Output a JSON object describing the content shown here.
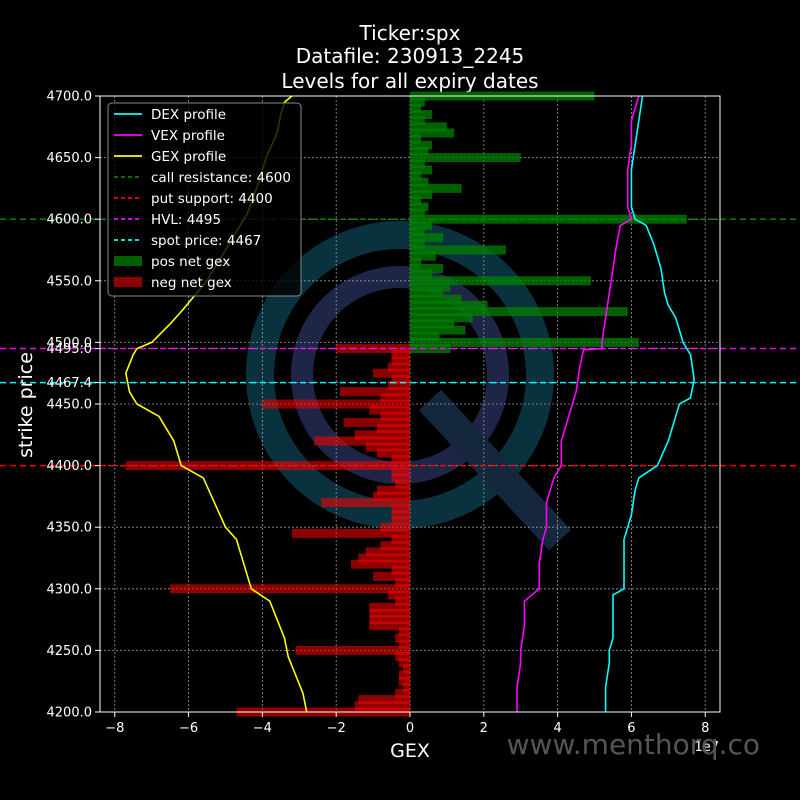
{
  "chart_data": {
    "type": "bar",
    "title_lines": [
      "Ticker:spx",
      "Datafile: 230913_2245",
      "Levels for all expiry dates"
    ],
    "xlabel": "GEX",
    "ylabel": "strike price",
    "x_exponent_label": "1e7",
    "xlim": [
      -8.4,
      8.4
    ],
    "ylim": [
      4200,
      4700
    ],
    "x_ticks": [
      -8,
      -6,
      -4,
      -2,
      0,
      2,
      4,
      6,
      8
    ],
    "y_ticks": [
      4200,
      4250,
      4300,
      4350,
      4400,
      4450,
      4467.4,
      4495,
      4500,
      4550,
      4600,
      4650,
      4700
    ],
    "y_tick_labels": [
      "4200.0",
      "4250.0",
      "4300.0",
      "4350.0",
      "4400.0",
      "4450.0",
      "4467.4",
      "4495.0",
      "4500.0",
      "4550.0",
      "4600.0",
      "4650.0",
      "4700.0"
    ],
    "grid": true,
    "legend_position": "top-left",
    "bar_height": 9,
    "pos_net_gex": [
      {
        "strike": 4495,
        "value": 1.1
      },
      {
        "strike": 4500,
        "value": 6.2
      },
      {
        "strike": 4505,
        "value": 0.8
      },
      {
        "strike": 4510,
        "value": 1.5
      },
      {
        "strike": 4515,
        "value": 1.2
      },
      {
        "strike": 4520,
        "value": 1.7
      },
      {
        "strike": 4525,
        "value": 5.9
      },
      {
        "strike": 4530,
        "value": 2.1
      },
      {
        "strike": 4535,
        "value": 1.4
      },
      {
        "strike": 4540,
        "value": 0.9
      },
      {
        "strike": 4545,
        "value": 1.1
      },
      {
        "strike": 4550,
        "value": 4.9
      },
      {
        "strike": 4555,
        "value": 0.6
      },
      {
        "strike": 4560,
        "value": 0.9
      },
      {
        "strike": 4565,
        "value": 0.3
      },
      {
        "strike": 4570,
        "value": 0.7
      },
      {
        "strike": 4575,
        "value": 2.6
      },
      {
        "strike": 4580,
        "value": 0.4
      },
      {
        "strike": 4585,
        "value": 0.9
      },
      {
        "strike": 4590,
        "value": 0.4
      },
      {
        "strike": 4595,
        "value": 0.6
      },
      {
        "strike": 4600,
        "value": 7.5
      },
      {
        "strike": 4605,
        "value": 0.4
      },
      {
        "strike": 4610,
        "value": 0.5
      },
      {
        "strike": 4615,
        "value": 0.3
      },
      {
        "strike": 4620,
        "value": 0.6
      },
      {
        "strike": 4625,
        "value": 1.4
      },
      {
        "strike": 4630,
        "value": 0.5
      },
      {
        "strike": 4635,
        "value": 0.3
      },
      {
        "strike": 4640,
        "value": 0.6
      },
      {
        "strike": 4645,
        "value": 0.4
      },
      {
        "strike": 4650,
        "value": 3.0
      },
      {
        "strike": 4655,
        "value": 0.5
      },
      {
        "strike": 4660,
        "value": 0.6
      },
      {
        "strike": 4665,
        "value": 0.3
      },
      {
        "strike": 4670,
        "value": 1.2
      },
      {
        "strike": 4675,
        "value": 1.0
      },
      {
        "strike": 4680,
        "value": 0.4
      },
      {
        "strike": 4685,
        "value": 0.6
      },
      {
        "strike": 4690,
        "value": 0.3
      },
      {
        "strike": 4695,
        "value": 0.4
      },
      {
        "strike": 4700,
        "value": 5.0
      }
    ],
    "neg_net_gex": [
      {
        "strike": 4200,
        "value": -4.7
      },
      {
        "strike": 4205,
        "value": -1.5
      },
      {
        "strike": 4210,
        "value": -1.4
      },
      {
        "strike": 4215,
        "value": -0.4
      },
      {
        "strike": 4220,
        "value": -0.2
      },
      {
        "strike": 4225,
        "value": -0.3
      },
      {
        "strike": 4230,
        "value": -0.3
      },
      {
        "strike": 4235,
        "value": -0.2
      },
      {
        "strike": 4240,
        "value": -0.3
      },
      {
        "strike": 4245,
        "value": -0.4
      },
      {
        "strike": 4250,
        "value": -3.1
      },
      {
        "strike": 4255,
        "value": -0.3
      },
      {
        "strike": 4260,
        "value": -0.4
      },
      {
        "strike": 4265,
        "value": -0.3
      },
      {
        "strike": 4270,
        "value": -1.1
      },
      {
        "strike": 4275,
        "value": -1.1
      },
      {
        "strike": 4280,
        "value": -1.1
      },
      {
        "strike": 4285,
        "value": -1.1
      },
      {
        "strike": 4290,
        "value": -0.4
      },
      {
        "strike": 4295,
        "value": -0.6
      },
      {
        "strike": 4300,
        "value": -6.5
      },
      {
        "strike": 4305,
        "value": -0.4
      },
      {
        "strike": 4310,
        "value": -1.0
      },
      {
        "strike": 4315,
        "value": -0.5
      },
      {
        "strike": 4320,
        "value": -1.6
      },
      {
        "strike": 4325,
        "value": -1.4
      },
      {
        "strike": 4330,
        "value": -1.2
      },
      {
        "strike": 4335,
        "value": -0.8
      },
      {
        "strike": 4340,
        "value": -0.5
      },
      {
        "strike": 4345,
        "value": -3.2
      },
      {
        "strike": 4350,
        "value": -0.8
      },
      {
        "strike": 4355,
        "value": -0.5
      },
      {
        "strike": 4360,
        "value": -0.5
      },
      {
        "strike": 4365,
        "value": -0.5
      },
      {
        "strike": 4370,
        "value": -2.4
      },
      {
        "strike": 4375,
        "value": -1.0
      },
      {
        "strike": 4380,
        "value": -0.9
      },
      {
        "strike": 4385,
        "value": -0.4
      },
      {
        "strike": 4390,
        "value": -0.5
      },
      {
        "strike": 4395,
        "value": -0.5
      },
      {
        "strike": 4400,
        "value": -7.7
      },
      {
        "strike": 4405,
        "value": -0.5
      },
      {
        "strike": 4410,
        "value": -0.9
      },
      {
        "strike": 4415,
        "value": -1.2
      },
      {
        "strike": 4420,
        "value": -2.6
      },
      {
        "strike": 4425,
        "value": -1.5
      },
      {
        "strike": 4430,
        "value": -0.9
      },
      {
        "strike": 4435,
        "value": -1.8
      },
      {
        "strike": 4440,
        "value": -0.8
      },
      {
        "strike": 4445,
        "value": -1.1
      },
      {
        "strike": 4450,
        "value": -4.0
      },
      {
        "strike": 4455,
        "value": -0.8
      },
      {
        "strike": 4460,
        "value": -1.9
      },
      {
        "strike": 4465,
        "value": -0.6
      },
      {
        "strike": 4470,
        "value": -0.5
      },
      {
        "strike": 4475,
        "value": -1.0
      },
      {
        "strike": 4480,
        "value": -0.6
      },
      {
        "strike": 4485,
        "value": -0.5
      },
      {
        "strike": 4490,
        "value": -0.5
      },
      {
        "strike": 4495,
        "value": -2.0
      }
    ],
    "series": [
      {
        "name": "DEX profile",
        "color": "#00ffff",
        "points": [
          [
            5.3,
            4200
          ],
          [
            5.3,
            4220
          ],
          [
            5.4,
            4240
          ],
          [
            5.4,
            4250
          ],
          [
            5.5,
            4260
          ],
          [
            5.5,
            4280
          ],
          [
            5.5,
            4295
          ],
          [
            5.8,
            4300
          ],
          [
            5.8,
            4320
          ],
          [
            5.8,
            4340
          ],
          [
            5.9,
            4350
          ],
          [
            6.0,
            4360
          ],
          [
            6.1,
            4380
          ],
          [
            6.2,
            4390
          ],
          [
            6.7,
            4400
          ],
          [
            7.0,
            4420
          ],
          [
            7.2,
            4440
          ],
          [
            7.3,
            4450
          ],
          [
            7.6,
            4455
          ],
          [
            7.7,
            4470
          ],
          [
            7.6,
            4490
          ],
          [
            7.4,
            4500
          ],
          [
            7.2,
            4520
          ],
          [
            7.0,
            4530
          ],
          [
            6.9,
            4540
          ],
          [
            6.8,
            4560
          ],
          [
            6.6,
            4580
          ],
          [
            6.4,
            4595
          ],
          [
            6.1,
            4600
          ],
          [
            6.0,
            4610
          ],
          [
            6.0,
            4640
          ],
          [
            6.1,
            4660
          ],
          [
            6.2,
            4680
          ],
          [
            6.3,
            4700
          ]
        ]
      },
      {
        "name": "VEX profile",
        "color": "#ff00ff",
        "points": [
          [
            2.9,
            4200
          ],
          [
            2.9,
            4220
          ],
          [
            3.0,
            4240
          ],
          [
            3.0,
            4250
          ],
          [
            3.1,
            4270
          ],
          [
            3.1,
            4290
          ],
          [
            3.5,
            4300
          ],
          [
            3.5,
            4320
          ],
          [
            3.6,
            4340
          ],
          [
            3.7,
            4350
          ],
          [
            3.7,
            4370
          ],
          [
            3.8,
            4380
          ],
          [
            3.9,
            4390
          ],
          [
            4.1,
            4400
          ],
          [
            4.1,
            4420
          ],
          [
            4.3,
            4440
          ],
          [
            4.4,
            4450
          ],
          [
            4.5,
            4460
          ],
          [
            4.6,
            4480
          ],
          [
            4.7,
            4494
          ],
          [
            5.2,
            4495
          ],
          [
            5.2,
            4500
          ],
          [
            5.3,
            4520
          ],
          [
            5.4,
            4540
          ],
          [
            5.5,
            4560
          ],
          [
            5.6,
            4580
          ],
          [
            5.7,
            4595
          ],
          [
            6.0,
            4600
          ],
          [
            5.9,
            4610
          ],
          [
            5.9,
            4640
          ],
          [
            6.0,
            4660
          ],
          [
            6.0,
            4680
          ],
          [
            6.1,
            4690
          ],
          [
            6.2,
            4700
          ]
        ]
      },
      {
        "name": "GEX profile",
        "color": "#ffff00",
        "points": [
          [
            -2.8,
            4200
          ],
          [
            -2.9,
            4215
          ],
          [
            -3.1,
            4230
          ],
          [
            -3.3,
            4245
          ],
          [
            -3.4,
            4260
          ],
          [
            -3.6,
            4275
          ],
          [
            -3.8,
            4290
          ],
          [
            -4.3,
            4300
          ],
          [
            -4.5,
            4320
          ],
          [
            -4.7,
            4340
          ],
          [
            -5.0,
            4350
          ],
          [
            -5.3,
            4370
          ],
          [
            -5.6,
            4390
          ],
          [
            -6.2,
            4400
          ],
          [
            -6.4,
            4420
          ],
          [
            -6.8,
            4440
          ],
          [
            -7.4,
            4450
          ],
          [
            -7.6,
            4460
          ],
          [
            -7.7,
            4475
          ],
          [
            -7.5,
            4490
          ],
          [
            -7.4,
            4495
          ],
          [
            -7.0,
            4500
          ],
          [
            -6.5,
            4515
          ],
          [
            -6.2,
            4525
          ],
          [
            -5.5,
            4550
          ],
          [
            -5.0,
            4575
          ],
          [
            -4.6,
            4595
          ],
          [
            -4.4,
            4605
          ],
          [
            -4.1,
            4630
          ],
          [
            -3.9,
            4650
          ],
          [
            -3.6,
            4670
          ],
          [
            -3.5,
            4685
          ],
          [
            -3.4,
            4695
          ],
          [
            -3.2,
            4700
          ]
        ]
      }
    ],
    "levels": [
      {
        "name": "call resistance: 4600",
        "value": 4600,
        "color": "#008000"
      },
      {
        "name": "put support: 4400",
        "value": 4400,
        "color": "#ff0000"
      },
      {
        "name": "HVL: 4495",
        "value": 4495,
        "color": "#ff00ff"
      },
      {
        "name": "spot price: 4467",
        "value": 4467.4,
        "color": "#00ffff"
      }
    ],
    "bar_legend": [
      {
        "name": "pos net gex",
        "color": "#008000"
      },
      {
        "name": "neg net gex",
        "color": "#ff0000"
      }
    ],
    "watermark": "www.menthorq.co"
  }
}
